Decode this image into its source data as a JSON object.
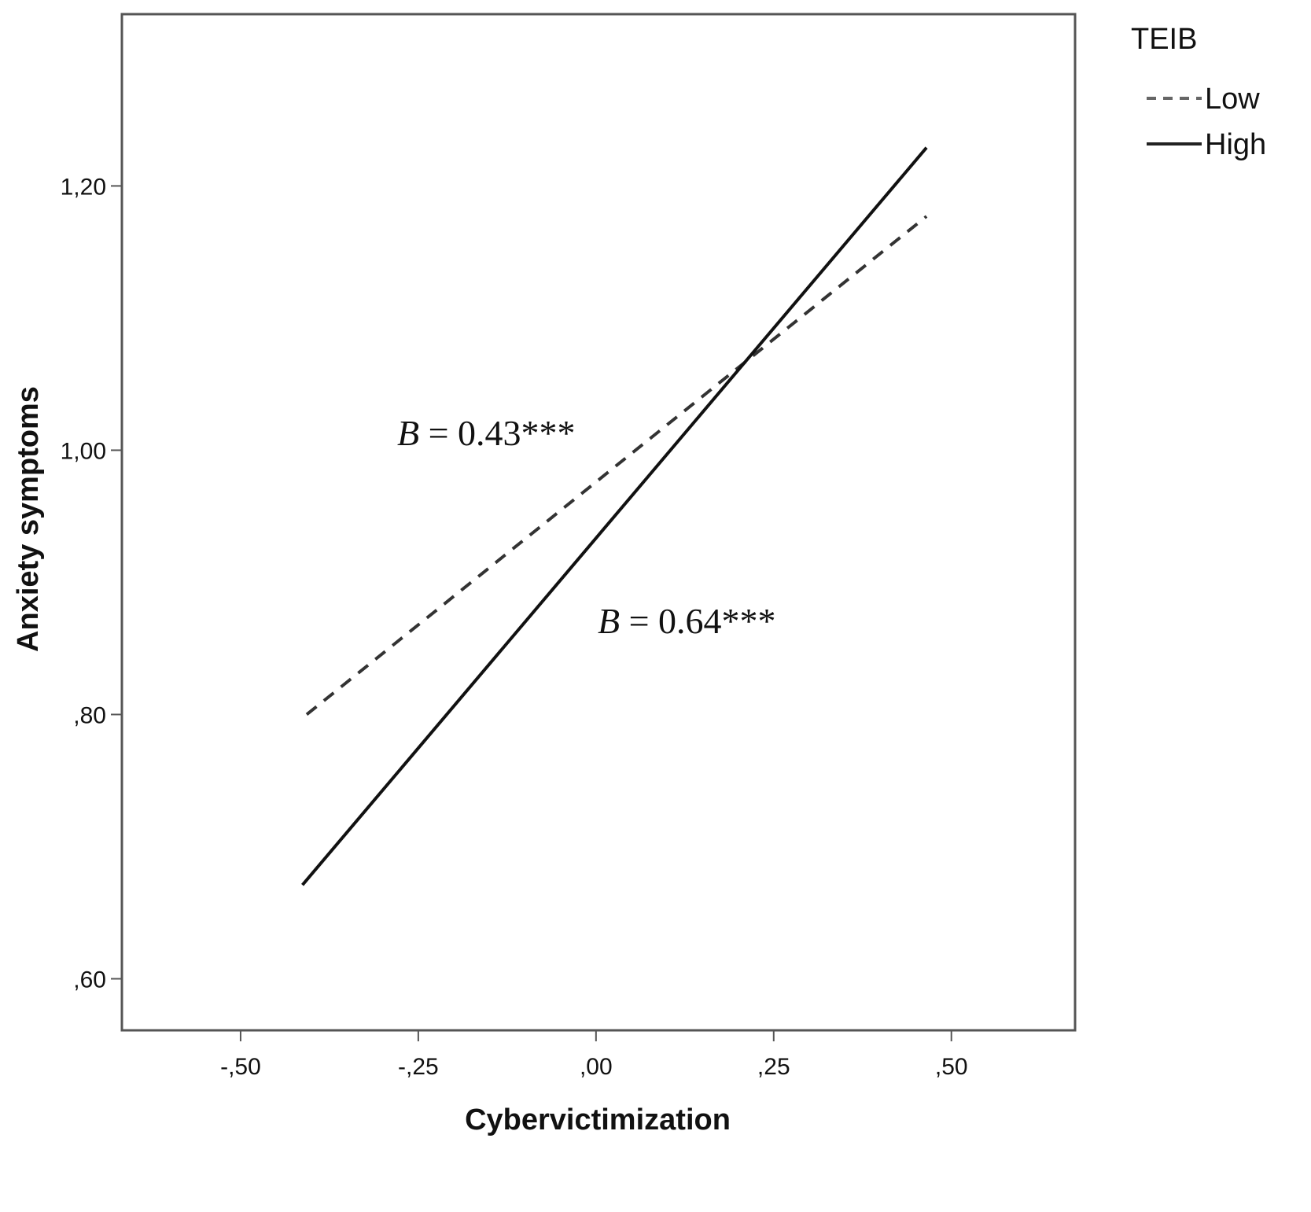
{
  "chart_data": {
    "type": "line",
    "title": "",
    "xlabel": "Cybervictimization",
    "ylabel": "Anxiety symptoms",
    "xlim": [
      -0.667,
      0.674
    ],
    "ylim": [
      0.561,
      1.33
    ],
    "xticks": [
      -0.5,
      -0.25,
      0,
      0.25,
      0.5
    ],
    "xtick_labels": [
      "-,50",
      "-,25",
      ",00",
      ",25",
      ",50"
    ],
    "yticks": [
      0.6,
      0.8,
      1.0,
      1.2
    ],
    "ytick_labels": [
      ",60",
      ",80",
      "1,00",
      "1,20"
    ],
    "grid": false,
    "legend": {
      "title": "TEIB",
      "placement": "top-right outside"
    },
    "series": [
      {
        "name": "Low",
        "style": "dashed",
        "color": "#333333",
        "x": [
          -0.407,
          0.465
        ],
        "y": [
          0.8,
          1.177
        ]
      },
      {
        "name": "High",
        "style": "solid",
        "color": "#111111",
        "x": [
          -0.413,
          0.465
        ],
        "y": [
          0.671,
          1.229
        ]
      }
    ],
    "annotations": [
      {
        "italic": "B",
        "text": " = 0.43***",
        "x": -0.28,
        "y": 1.01
      },
      {
        "italic": "B",
        "text": " = 0.64***",
        "x": 0.0,
        "y": 0.87
      }
    ]
  }
}
